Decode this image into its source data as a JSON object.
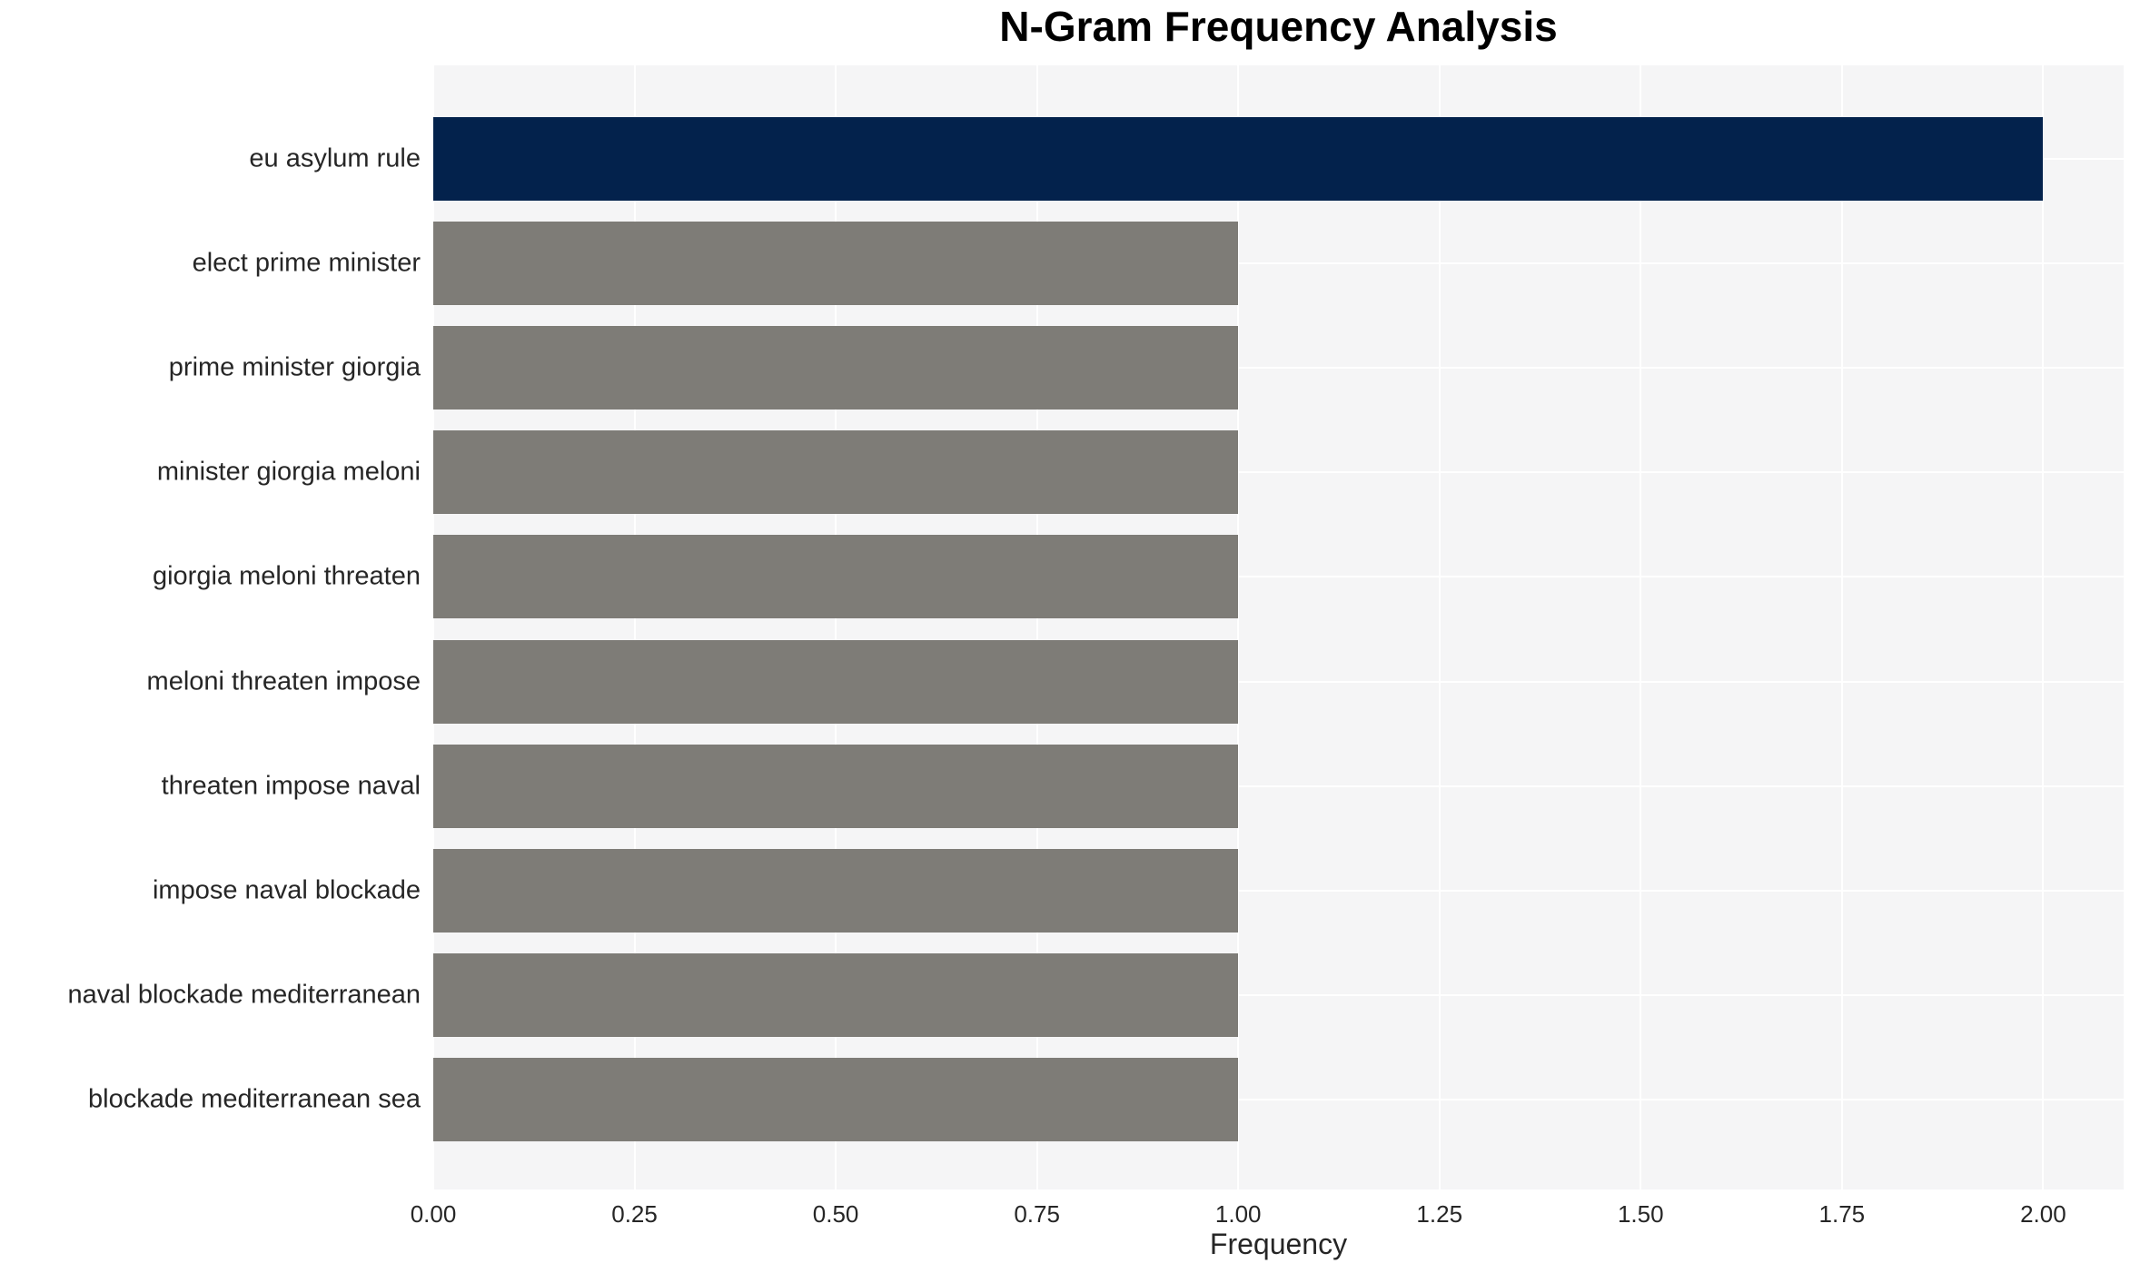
{
  "chart_data": {
    "type": "bar",
    "orientation": "horizontal",
    "title": "N-Gram Frequency Analysis",
    "xlabel": "Frequency",
    "ylabel": "",
    "categories": [
      "eu asylum rule",
      "elect prime minister",
      "prime minister giorgia",
      "minister giorgia meloni",
      "giorgia meloni threaten",
      "meloni threaten impose",
      "threaten impose naval",
      "impose naval blockade",
      "naval blockade mediterranean",
      "blockade mediterranean sea"
    ],
    "values": [
      2,
      1,
      1,
      1,
      1,
      1,
      1,
      1,
      1,
      1
    ],
    "bar_colors": [
      "#03224c",
      "#7e7c77",
      "#7e7c77",
      "#7e7c77",
      "#7e7c77",
      "#7e7c77",
      "#7e7c77",
      "#7e7c77",
      "#7e7c77",
      "#7e7c77"
    ],
    "xlim": [
      0,
      2.1
    ],
    "xticks": [
      {
        "value": 0,
        "label": "0.00"
      },
      {
        "value": 0.25,
        "label": "0.25"
      },
      {
        "value": 0.5,
        "label": "0.50"
      },
      {
        "value": 0.75,
        "label": "0.75"
      },
      {
        "value": 1,
        "label": "1.00"
      },
      {
        "value": 1.25,
        "label": "1.25"
      },
      {
        "value": 1.5,
        "label": "1.50"
      },
      {
        "value": 1.75,
        "label": "1.75"
      },
      {
        "value": 2,
        "label": "2.00"
      }
    ],
    "grid": true,
    "legend_position": "none",
    "colors": {
      "highlight_bar": "#03224c",
      "default_bar": "#7e7c77",
      "panel_background": "#f5f5f6",
      "gridline": "#ffffff",
      "text": "#262626",
      "title_text": "#000000"
    }
  }
}
